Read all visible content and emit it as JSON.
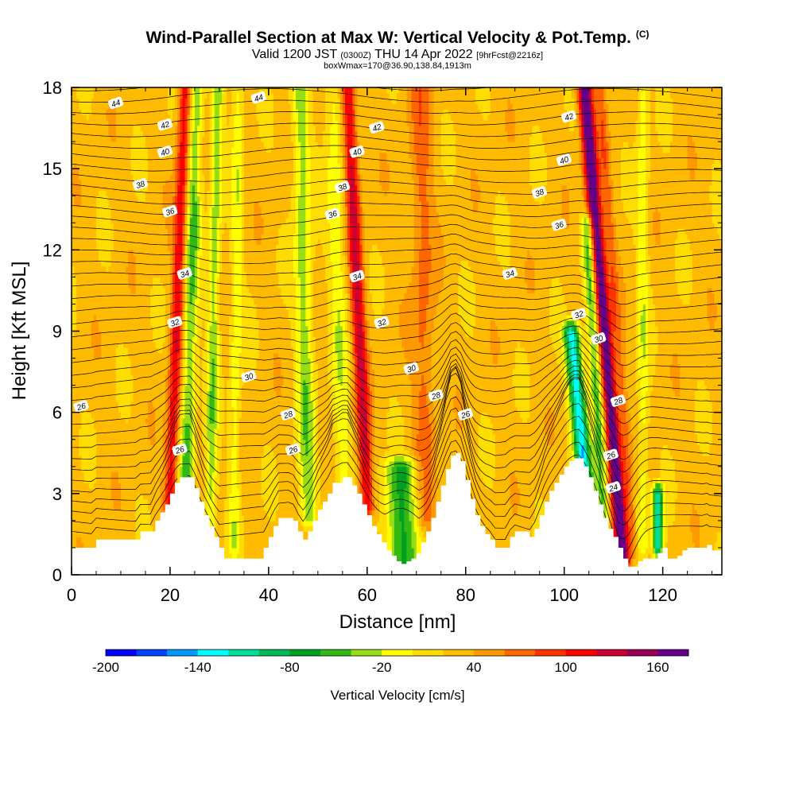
{
  "title": {
    "main": "Wind-Parallel Section at Max W: Vertical Velocity & Pot.Temp.",
    "main_suffix": "(C)",
    "valid_prefix": "Valid 1200 JST",
    "valid_utc": "(0300Z)",
    "valid_date": "THU 14 Apr 2022",
    "forecast": "[9hrFcst@2216z]",
    "box": "boxWmax=170@36.90,138.84,1913m"
  },
  "chart_data": {
    "type": "heatmap",
    "xlabel": "Distance [nm]",
    "ylabel": "Height [Kft MSL]",
    "xlim": [
      0,
      132
    ],
    "ylim": [
      0,
      18
    ],
    "x_ticks": [
      0,
      20,
      40,
      60,
      80,
      100,
      120
    ],
    "y_ticks": [
      0,
      3,
      6,
      9,
      12,
      15,
      18
    ],
    "colorbar": {
      "label": "Vertical Velocity [cm/s]",
      "range": [
        -200,
        180
      ],
      "tick_values": [
        -200,
        -140,
        -80,
        -20,
        40,
        100,
        160
      ],
      "colors": [
        "#0000ff",
        "#0044ff",
        "#0099ff",
        "#00ffff",
        "#00dd99",
        "#00bb55",
        "#00a020",
        "#33b814",
        "#99dd14",
        "#ffff00",
        "#ffdd00",
        "#ffbb00",
        "#ff9900",
        "#ff6600",
        "#ff3300",
        "#ff0000",
        "#cc0033",
        "#990055",
        "#660088"
      ]
    },
    "terrain_kft": [
      [
        0,
        1.0
      ],
      [
        4,
        1.0
      ],
      [
        5,
        1.3
      ],
      [
        13,
        1.3
      ],
      [
        14,
        1.6
      ],
      [
        16,
        1.6
      ],
      [
        17,
        2.0
      ],
      [
        18,
        2.3
      ],
      [
        19,
        2.6
      ],
      [
        20,
        3.0
      ],
      [
        21,
        3.4
      ],
      [
        22,
        3.6
      ],
      [
        24,
        3.6
      ],
      [
        25,
        3.2
      ],
      [
        26,
        2.7
      ],
      [
        27,
        2.2
      ],
      [
        28,
        1.8
      ],
      [
        29,
        1.4
      ],
      [
        30,
        1.0
      ],
      [
        31,
        0.6
      ],
      [
        38,
        0.6
      ],
      [
        39,
        1.0
      ],
      [
        40,
        1.4
      ],
      [
        41,
        1.8
      ],
      [
        42,
        2.1
      ],
      [
        44,
        2.1
      ],
      [
        45,
        2.0
      ],
      [
        46,
        1.6
      ],
      [
        47,
        1.3
      ],
      [
        48,
        1.6
      ],
      [
        49,
        2.0
      ],
      [
        50,
        2.4
      ],
      [
        51,
        2.7
      ],
      [
        52,
        3.0
      ],
      [
        53,
        3.4
      ],
      [
        55,
        3.6
      ],
      [
        56,
        3.6
      ],
      [
        57,
        3.3
      ],
      [
        58,
        3.0
      ],
      [
        59,
        2.6
      ],
      [
        60,
        2.2
      ],
      [
        61,
        1.8
      ],
      [
        62,
        1.5
      ],
      [
        63,
        1.2
      ],
      [
        64,
        0.9
      ],
      [
        65,
        0.7
      ],
      [
        66,
        0.5
      ],
      [
        67,
        0.4
      ],
      [
        68,
        0.5
      ],
      [
        69,
        0.6
      ],
      [
        70,
        0.8
      ],
      [
        71,
        1.2
      ],
      [
        72,
        1.6
      ],
      [
        73,
        2.1
      ],
      [
        74,
        2.7
      ],
      [
        75,
        3.3
      ],
      [
        76,
        3.9
      ],
      [
        77,
        4.4
      ],
      [
        78,
        4.5
      ],
      [
        79,
        4.2
      ],
      [
        80,
        3.5
      ],
      [
        81,
        2.8
      ],
      [
        82,
        2.2
      ],
      [
        83,
        1.8
      ],
      [
        84,
        1.5
      ],
      [
        85,
        1.3
      ],
      [
        86,
        1.0
      ],
      [
        88,
        1.0
      ],
      [
        89,
        1.4
      ],
      [
        90,
        1.6
      ],
      [
        93,
        1.4
      ],
      [
        94,
        1.7
      ],
      [
        95,
        2.2
      ],
      [
        96,
        2.7
      ],
      [
        97,
        3.1
      ],
      [
        98,
        3.4
      ],
      [
        99,
        3.7
      ],
      [
        100,
        4.0
      ],
      [
        101,
        4.2
      ],
      [
        102,
        4.3
      ],
      [
        103,
        4.3
      ],
      [
        104,
        4.0
      ],
      [
        105,
        3.6
      ],
      [
        106,
        3.1
      ],
      [
        107,
        2.6
      ],
      [
        108,
        2.1
      ],
      [
        109,
        1.7
      ],
      [
        110,
        1.4
      ],
      [
        111,
        1.0
      ],
      [
        112,
        0.6
      ],
      [
        113,
        0.3
      ],
      [
        114,
        0.3
      ],
      [
        115,
        0.5
      ],
      [
        116,
        0.6
      ],
      [
        118,
        0.6
      ],
      [
        119,
        0.8
      ],
      [
        120,
        1.0
      ],
      [
        121,
        0.6
      ],
      [
        122,
        0.6
      ],
      [
        123,
        0.7
      ],
      [
        124,
        0.9
      ],
      [
        125,
        1.0
      ],
      [
        126,
        1.0
      ],
      [
        128,
        1.0
      ],
      [
        129,
        1.1
      ],
      [
        130,
        0.9
      ],
      [
        132,
        0.6
      ]
    ],
    "updrafts_note": "Vertical velocity field (cm/s) approximated by bands; values are centers and peak amplitudes",
    "w_features": [
      {
        "x": 20,
        "z0": 2.5,
        "z1": 18,
        "lean": 0.8,
        "w": 90,
        "width": 1.3
      },
      {
        "x": 23,
        "z0": 2.0,
        "z1": 18,
        "lean": 0.6,
        "w": -70,
        "width": 1.5
      },
      {
        "x": 28,
        "z0": 1.0,
        "z1": 18,
        "lean": 0.4,
        "w": -60,
        "width": 1.2
      },
      {
        "x": 33,
        "z0": 1.0,
        "z1": 18,
        "lean": 0.2,
        "w": -40,
        "width": 1.2
      },
      {
        "x": 48,
        "z0": 2.0,
        "z1": 18,
        "lean": -0.4,
        "w": -60,
        "width": 1.8
      },
      {
        "x": 55,
        "z0": 3.0,
        "z1": 18,
        "lean": -0.5,
        "w": -40,
        "width": 1.8
      },
      {
        "x": 60,
        "z0": 2.5,
        "z1": 18,
        "lean": -1.0,
        "w": 100,
        "width": 1.4
      },
      {
        "x": 67,
        "z0": 0.5,
        "z1": 4.0,
        "lean": 0.0,
        "w": -90,
        "width": 3.5
      },
      {
        "x": 72,
        "z0": 2.0,
        "z1": 18,
        "lean": -0.3,
        "w": 40,
        "width": 2.2
      },
      {
        "x": 105,
        "z0": 2.0,
        "z1": 9.0,
        "lean": -2.0,
        "w": -160,
        "width": 1.6
      },
      {
        "x": 108,
        "z0": 2.0,
        "z1": 13.0,
        "lean": -1.2,
        "w": -80,
        "width": 1.3
      },
      {
        "x": 112,
        "z0": 0.5,
        "z1": 18,
        "lean": -1.8,
        "w": 170,
        "width": 1.4
      },
      {
        "x": 114,
        "z0": 1.0,
        "z1": 18,
        "lean": -1.6,
        "w": 40,
        "width": 1.0
      },
      {
        "x": 119,
        "z0": 1.0,
        "z1": 3.0,
        "lean": 0.0,
        "w": -150,
        "width": 1.0
      },
      {
        "x": 116,
        "z0": 1.0,
        "z1": 18,
        "lean": 0.0,
        "w": -40,
        "width": 1.2
      }
    ],
    "theta_contours": [
      24,
      26,
      28,
      30,
      32,
      34,
      36,
      38,
      40,
      42,
      44
    ],
    "theta_labels": [
      {
        "x": 2,
        "z": 6.2,
        "text": "26"
      },
      {
        "x": 22,
        "z": 4.6,
        "text": "26"
      },
      {
        "x": 45,
        "z": 4.6,
        "text": "26"
      },
      {
        "x": 80,
        "z": 5.9,
        "text": "26"
      },
      {
        "x": 44,
        "z": 5.9,
        "text": "28"
      },
      {
        "x": 74,
        "z": 6.6,
        "text": "28"
      },
      {
        "x": 36,
        "z": 7.3,
        "text": "30"
      },
      {
        "x": 69,
        "z": 7.6,
        "text": "30"
      },
      {
        "x": 107,
        "z": 8.7,
        "text": "30"
      },
      {
        "x": 21,
        "z": 9.3,
        "text": "32"
      },
      {
        "x": 63,
        "z": 9.3,
        "text": "32"
      },
      {
        "x": 103,
        "z": 9.6,
        "text": "32"
      },
      {
        "x": 23,
        "z": 11.1,
        "text": "34"
      },
      {
        "x": 58,
        "z": 11.0,
        "text": "34"
      },
      {
        "x": 89,
        "z": 11.1,
        "text": "34"
      },
      {
        "x": 20,
        "z": 13.4,
        "text": "36"
      },
      {
        "x": 53,
        "z": 13.3,
        "text": "36"
      },
      {
        "x": 99,
        "z": 12.9,
        "text": "36"
      },
      {
        "x": 14,
        "z": 14.4,
        "text": "38"
      },
      {
        "x": 55,
        "z": 14.3,
        "text": "38"
      },
      {
        "x": 95,
        "z": 14.1,
        "text": "38"
      },
      {
        "x": 19,
        "z": 15.6,
        "text": "40"
      },
      {
        "x": 58,
        "z": 15.6,
        "text": "40"
      },
      {
        "x": 100,
        "z": 15.3,
        "text": "40"
      },
      {
        "x": 19,
        "z": 16.6,
        "text": "42"
      },
      {
        "x": 62,
        "z": 16.5,
        "text": "42"
      },
      {
        "x": 101,
        "z": 16.9,
        "text": "42"
      },
      {
        "x": 9,
        "z": 17.4,
        "text": "44"
      },
      {
        "x": 38,
        "z": 17.6,
        "text": "44"
      },
      {
        "x": 106,
        "z": 18.2,
        "text": "44"
      },
      {
        "x": 111,
        "z": 6.4,
        "text": "28"
      },
      {
        "x": 109.5,
        "z": 4.4,
        "text": "26"
      },
      {
        "x": 110,
        "z": 3.2,
        "text": "24"
      }
    ]
  }
}
